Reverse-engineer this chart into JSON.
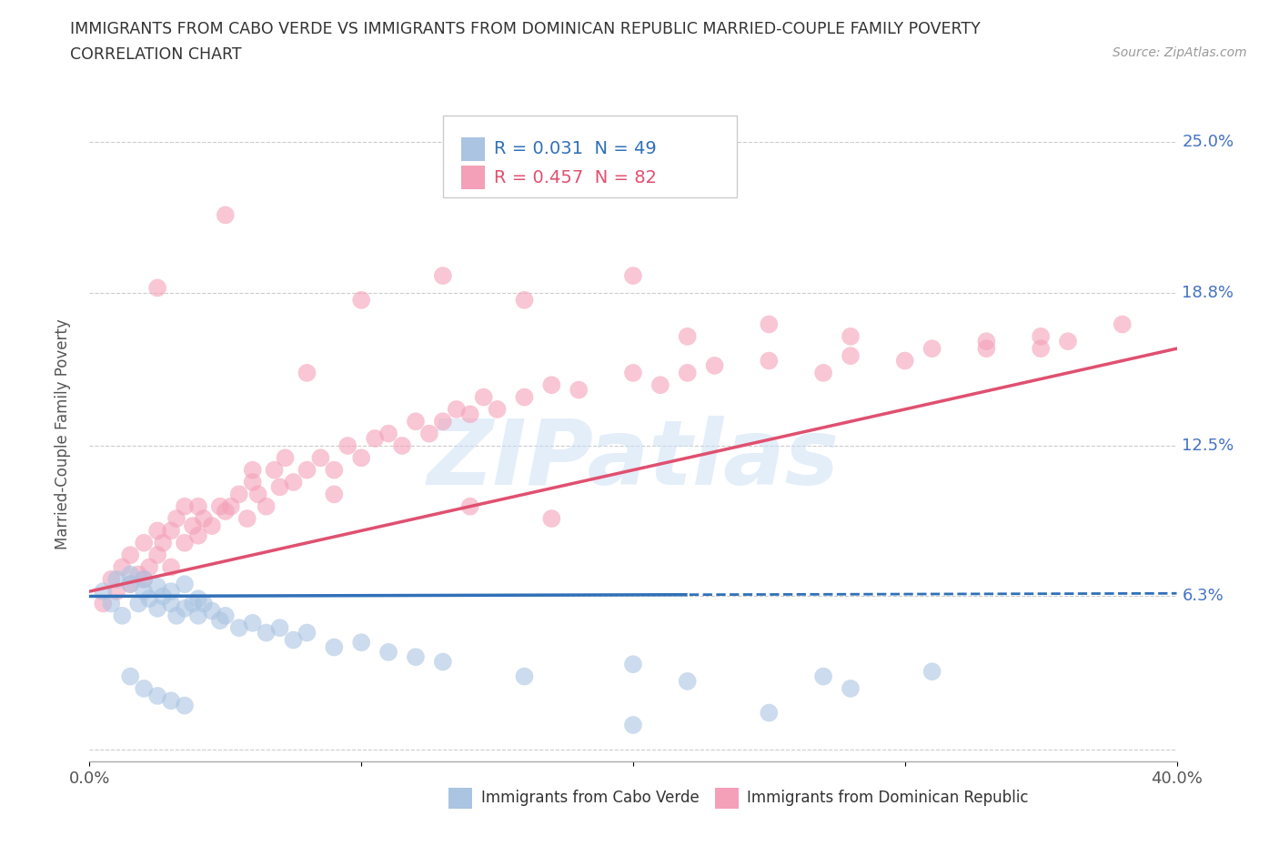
{
  "title_line1": "IMMIGRANTS FROM CABO VERDE VS IMMIGRANTS FROM DOMINICAN REPUBLIC MARRIED-COUPLE FAMILY POVERTY",
  "title_line2": "CORRELATION CHART",
  "source_text": "Source: ZipAtlas.com",
  "ylabel": "Married-Couple Family Poverty",
  "xlim": [
    0.0,
    0.4
  ],
  "ylim": [
    -0.005,
    0.265
  ],
  "ytick_vals": [
    0.0,
    0.063,
    0.125,
    0.188,
    0.25
  ],
  "ytick_labels": [
    "",
    "6.3%",
    "12.5%",
    "18.8%",
    "25.0%"
  ],
  "xtick_vals": [
    0.0,
    0.1,
    0.2,
    0.3,
    0.4
  ],
  "xtick_labels": [
    "0.0%",
    "",
    "",
    "",
    "40.0%"
  ],
  "cabo_verde_color": "#aac4e2",
  "dominican_color": "#f4a0b8",
  "cabo_verde_line_color": "#3070b8",
  "dominican_line_color": "#e05070",
  "right_label_color": "#4472c4",
  "cabo_R": 0.031,
  "cabo_N": 49,
  "dom_R": 0.457,
  "dom_N": 82,
  "watermark": "ZIPatlas",
  "cabo_scatter_x": [
    0.005,
    0.008,
    0.01,
    0.012,
    0.015,
    0.015,
    0.018,
    0.02,
    0.02,
    0.022,
    0.025,
    0.025,
    0.027,
    0.03,
    0.03,
    0.032,
    0.035,
    0.035,
    0.038,
    0.04,
    0.04,
    0.042,
    0.045,
    0.048,
    0.05,
    0.055,
    0.06,
    0.065,
    0.07,
    0.075,
    0.08,
    0.09,
    0.1,
    0.11,
    0.12,
    0.13,
    0.015,
    0.02,
    0.025,
    0.03,
    0.035,
    0.16,
    0.2,
    0.22,
    0.27,
    0.28,
    0.31,
    0.2,
    0.25
  ],
  "cabo_scatter_y": [
    0.065,
    0.06,
    0.07,
    0.055,
    0.068,
    0.072,
    0.06,
    0.065,
    0.07,
    0.062,
    0.058,
    0.067,
    0.063,
    0.06,
    0.065,
    0.055,
    0.058,
    0.068,
    0.06,
    0.055,
    0.062,
    0.06,
    0.057,
    0.053,
    0.055,
    0.05,
    0.052,
    0.048,
    0.05,
    0.045,
    0.048,
    0.042,
    0.044,
    0.04,
    0.038,
    0.036,
    0.03,
    0.025,
    0.022,
    0.02,
    0.018,
    0.03,
    0.035,
    0.028,
    0.03,
    0.025,
    0.032,
    0.01,
    0.015
  ],
  "dom_scatter_x": [
    0.005,
    0.008,
    0.01,
    0.012,
    0.015,
    0.015,
    0.018,
    0.02,
    0.02,
    0.022,
    0.025,
    0.025,
    0.027,
    0.03,
    0.03,
    0.032,
    0.035,
    0.035,
    0.038,
    0.04,
    0.04,
    0.042,
    0.045,
    0.048,
    0.05,
    0.052,
    0.055,
    0.058,
    0.06,
    0.062,
    0.065,
    0.068,
    0.07,
    0.072,
    0.075,
    0.08,
    0.085,
    0.09,
    0.095,
    0.1,
    0.105,
    0.11,
    0.115,
    0.12,
    0.125,
    0.13,
    0.135,
    0.14,
    0.145,
    0.15,
    0.16,
    0.17,
    0.18,
    0.2,
    0.21,
    0.22,
    0.23,
    0.25,
    0.27,
    0.28,
    0.3,
    0.33,
    0.35,
    0.36,
    0.38,
    0.025,
    0.05,
    0.08,
    0.1,
    0.13,
    0.16,
    0.2,
    0.22,
    0.25,
    0.28,
    0.31,
    0.33,
    0.35,
    0.06,
    0.09,
    0.14,
    0.17
  ],
  "dom_scatter_y": [
    0.06,
    0.07,
    0.065,
    0.075,
    0.068,
    0.08,
    0.072,
    0.07,
    0.085,
    0.075,
    0.08,
    0.09,
    0.085,
    0.075,
    0.09,
    0.095,
    0.085,
    0.1,
    0.092,
    0.088,
    0.1,
    0.095,
    0.092,
    0.1,
    0.098,
    0.1,
    0.105,
    0.095,
    0.11,
    0.105,
    0.1,
    0.115,
    0.108,
    0.12,
    0.11,
    0.115,
    0.12,
    0.115,
    0.125,
    0.12,
    0.128,
    0.13,
    0.125,
    0.135,
    0.13,
    0.135,
    0.14,
    0.138,
    0.145,
    0.14,
    0.145,
    0.15,
    0.148,
    0.155,
    0.15,
    0.155,
    0.158,
    0.16,
    0.155,
    0.162,
    0.16,
    0.165,
    0.17,
    0.168,
    0.175,
    0.19,
    0.22,
    0.155,
    0.185,
    0.195,
    0.185,
    0.195,
    0.17,
    0.175,
    0.17,
    0.165,
    0.168,
    0.165,
    0.115,
    0.105,
    0.1,
    0.095
  ]
}
